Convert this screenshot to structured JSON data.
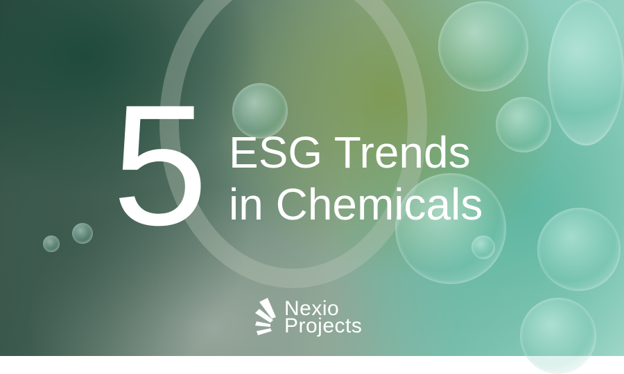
{
  "headline": {
    "number": "5",
    "line1": "ESG Trends",
    "line2": "in Chemicals"
  },
  "logo": {
    "line1": "Nexio",
    "line2": "Projects",
    "icon": "sunburst-rays-icon"
  },
  "colors": {
    "text": "#ffffff",
    "dark_green": "#1f4a3c",
    "teal": "#5fb7a1"
  }
}
